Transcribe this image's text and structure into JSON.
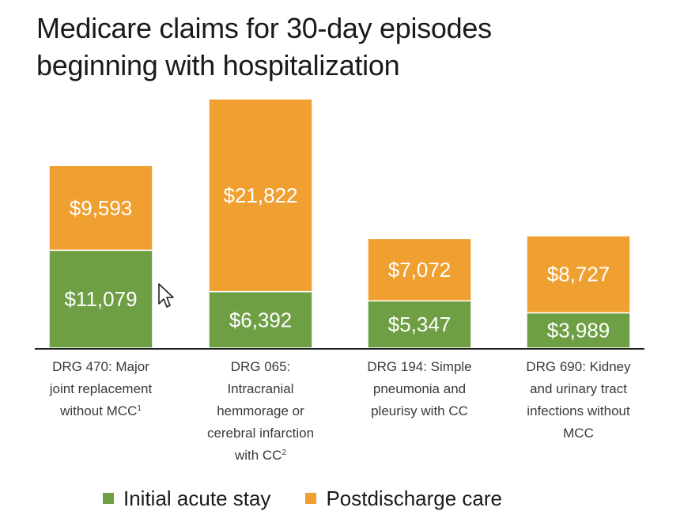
{
  "chart_data": {
    "type": "bar",
    "stacked": true,
    "title": [
      "Medicare claims for 30-day episodes",
      "beginning with hospitalization"
    ],
    "categories": [
      [
        "DRG 470: Major",
        "joint replacement",
        "without MCC|1"
      ],
      [
        "DRG 065:",
        "Intracranial",
        "hemmorage or",
        "cerebral infarction",
        "with CC|2"
      ],
      [
        "DRG 194: Simple",
        "pneumonia and",
        "pleurisy with CC"
      ],
      [
        "DRG 690: Kidney",
        "and urinary tract",
        "infections without",
        "MCC"
      ]
    ],
    "series": [
      {
        "name": "Initial acute stay",
        "color": "#6e9f45",
        "values": [
          11079,
          6392,
          5347,
          3989
        ],
        "labels": [
          "$11,079",
          "$6,392",
          "$5,347",
          "$3,989"
        ]
      },
      {
        "name": "Postdischarge care",
        "color": "#f0a030",
        "values": [
          9593,
          21822,
          7072,
          8727
        ],
        "labels": [
          "$9,593",
          "$21,822",
          "$7,072",
          "$8,727"
        ]
      }
    ],
    "ylim": [
      0,
      28214
    ],
    "xlabel": "",
    "ylabel": "",
    "grid": false,
    "legend": "bottom"
  }
}
